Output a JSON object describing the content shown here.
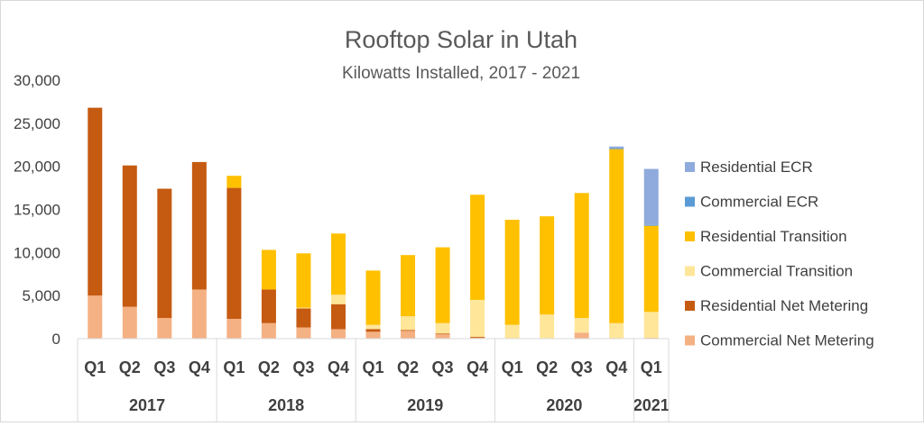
{
  "chart_data": {
    "type": "bar",
    "stacked": true,
    "title": "Rooftop Solar in Utah",
    "subtitle": "Kilowatts Installed, 2017 - 2021",
    "ylim": [
      0,
      30000
    ],
    "yticks": [
      "0",
      "5,000",
      "10,000",
      "15,000",
      "20,000",
      "25,000",
      "30,000"
    ],
    "ytick_values": [
      0,
      5000,
      10000,
      15000,
      20000,
      25000,
      30000
    ],
    "grid": false,
    "legend_position": "right",
    "categories": [
      "Q1",
      "Q2",
      "Q3",
      "Q4",
      "Q1",
      "Q2",
      "Q3",
      "Q4",
      "Q1",
      "Q2",
      "Q3",
      "Q4",
      "Q1",
      "Q2",
      "Q3",
      "Q4",
      "Q1"
    ],
    "groups": [
      {
        "label": "2017",
        "count": 4
      },
      {
        "label": "2018",
        "count": 4
      },
      {
        "label": "2019",
        "count": 4
      },
      {
        "label": "2020",
        "count": 4
      },
      {
        "label": "2021",
        "count": 1
      }
    ],
    "series": [
      {
        "name": "Commercial Net Metering",
        "color": "#f4b183",
        "values": [
          5000,
          3700,
          2400,
          5700,
          2300,
          1800,
          1300,
          1100,
          800,
          900,
          500,
          100,
          0,
          0,
          700,
          0,
          100
        ]
      },
      {
        "name": "Residential Net Metering",
        "color": "#c55a11",
        "values": [
          21800,
          16400,
          15000,
          14800,
          15200,
          3900,
          2200,
          2900,
          300,
          100,
          100,
          100,
          0,
          0,
          0,
          0,
          0
        ]
      },
      {
        "name": "Commercial Transition",
        "color": "#ffe699",
        "values": [
          0,
          0,
          0,
          0,
          0,
          0,
          100,
          1100,
          500,
          1600,
          1200,
          4300,
          1600,
          2800,
          1700,
          1800,
          3000
        ]
      },
      {
        "name": "Residential Transition",
        "color": "#ffc000",
        "values": [
          0,
          0,
          0,
          0,
          1400,
          4600,
          6300,
          7100,
          6300,
          7100,
          8800,
          12200,
          12200,
          11400,
          14500,
          20200,
          10000
        ]
      },
      {
        "name": "Commercial ECR",
        "color": "#5b9bd5",
        "values": [
          0,
          0,
          0,
          0,
          0,
          0,
          0,
          0,
          0,
          0,
          0,
          0,
          0,
          0,
          0,
          100,
          100
        ]
      },
      {
        "name": "Residential ECR",
        "color": "#8faadc",
        "values": [
          0,
          0,
          0,
          0,
          0,
          0,
          0,
          0,
          0,
          0,
          0,
          0,
          0,
          0,
          0,
          200,
          6500
        ]
      }
    ]
  }
}
